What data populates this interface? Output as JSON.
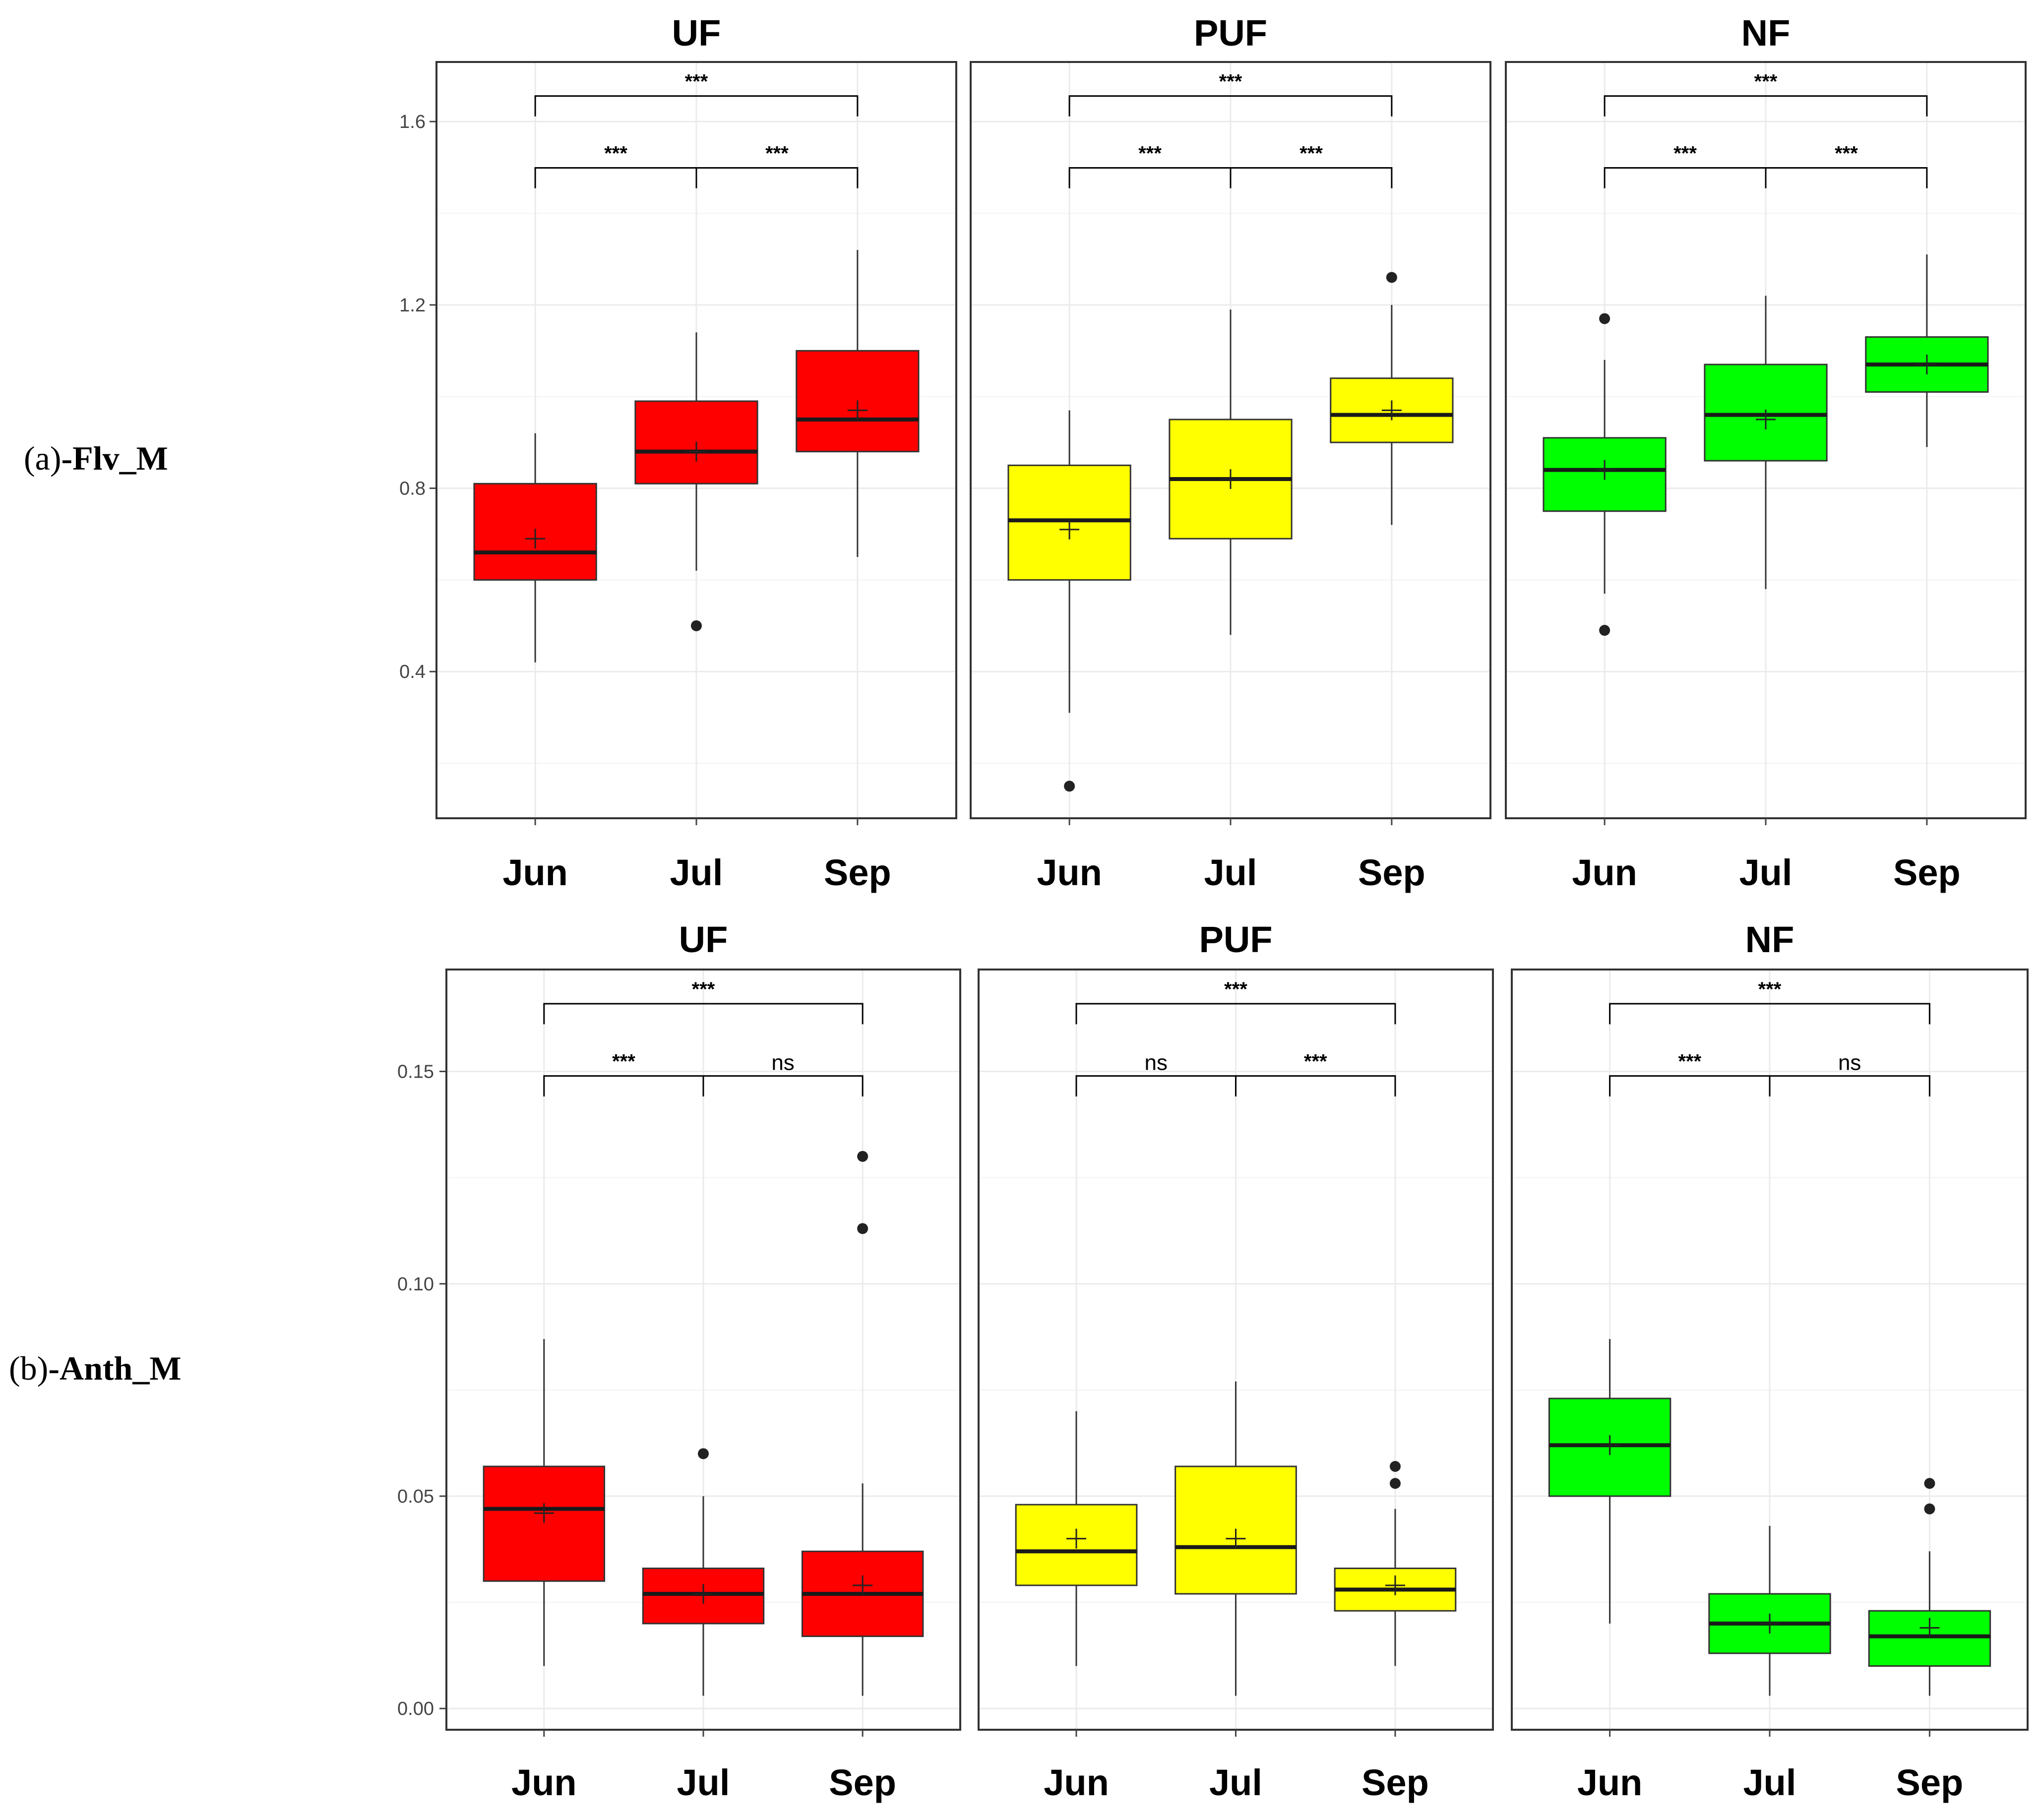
{
  "rows": [
    {
      "label_paren": "(",
      "label_letter": "a",
      "label_close": ")",
      "label_text": "-Flv_M"
    },
    {
      "label_paren": "(",
      "label_letter": "b",
      "label_close": ")",
      "label_text": "-Anth_M"
    }
  ],
  "colors": {
    "UF": "#ff0000",
    "PUF": "#ffff00",
    "NF": "#00ff00",
    "grid": "#ebebeb",
    "frame": "#333333",
    "median": "#1a1a1a"
  },
  "chart_data": [
    {
      "type": "box",
      "id": "flv",
      "ylabel_variable": "Flv_M",
      "yticks": [
        "0.4",
        "0.8",
        "1.2",
        "1.6"
      ],
      "ylim": [
        0.08,
        1.73
      ],
      "minor_grid": [
        0.2,
        0.6,
        1.0,
        1.4
      ],
      "categories": [
        "Jun",
        "Jul",
        "Sep"
      ],
      "panels": [
        {
          "title": "UF",
          "fill": "UF",
          "boxes": [
            {
              "month": "Jun",
              "q1": 0.6,
              "median": 0.66,
              "q3": 0.81,
              "lower": 0.42,
              "upper": 0.92,
              "mean": 0.69,
              "outliers": []
            },
            {
              "month": "Jul",
              "q1": 0.81,
              "median": 0.88,
              "q3": 0.99,
              "lower": 0.62,
              "upper": 1.14,
              "mean": 0.88,
              "outliers": [
                0.5
              ]
            },
            {
              "month": "Sep",
              "q1": 0.88,
              "median": 0.95,
              "q3": 1.1,
              "lower": 0.65,
              "upper": 1.32,
              "mean": 0.97,
              "outliers": []
            }
          ],
          "sig": {
            "top": "***",
            "left": "***",
            "right": "***"
          }
        },
        {
          "title": "PUF",
          "fill": "PUF",
          "boxes": [
            {
              "month": "Jun",
              "q1": 0.6,
              "median": 0.73,
              "q3": 0.85,
              "lower": 0.31,
              "upper": 0.97,
              "mean": 0.71,
              "outliers": [
                0.15
              ]
            },
            {
              "month": "Jul",
              "q1": 0.69,
              "median": 0.82,
              "q3": 0.95,
              "lower": 0.48,
              "upper": 1.19,
              "mean": 0.82,
              "outliers": []
            },
            {
              "month": "Sep",
              "q1": 0.9,
              "median": 0.96,
              "q3": 1.04,
              "lower": 0.72,
              "upper": 1.2,
              "mean": 0.97,
              "outliers": [
                1.26
              ]
            }
          ],
          "sig": {
            "top": "***",
            "left": "***",
            "right": "***"
          }
        },
        {
          "title": "NF",
          "fill": "NF",
          "boxes": [
            {
              "month": "Jun",
              "q1": 0.75,
              "median": 0.84,
              "q3": 0.91,
              "lower": 0.57,
              "upper": 1.08,
              "mean": 0.84,
              "outliers": [
                0.49,
                1.17
              ]
            },
            {
              "month": "Jul",
              "q1": 0.86,
              "median": 0.96,
              "q3": 1.07,
              "lower": 0.58,
              "upper": 1.22,
              "mean": 0.95,
              "outliers": []
            },
            {
              "month": "Sep",
              "q1": 1.01,
              "median": 1.07,
              "q3": 1.13,
              "lower": 0.89,
              "upper": 1.31,
              "mean": 1.07,
              "outliers": []
            }
          ],
          "sig": {
            "top": "***",
            "left": "***",
            "right": "***"
          }
        }
      ]
    },
    {
      "type": "box",
      "id": "anth",
      "ylabel_variable": "Anth_M",
      "yticks": [
        "0.00",
        "0.05",
        "0.10",
        "0.15"
      ],
      "ylim": [
        -0.005,
        0.174
      ],
      "minor_grid": [
        0.025,
        0.075,
        0.125
      ],
      "categories": [
        "Jun",
        "Jul",
        "Sep"
      ],
      "panels": [
        {
          "title": "UF",
          "fill": "UF",
          "boxes": [
            {
              "month": "Jun",
              "q1": 0.03,
              "median": 0.047,
              "q3": 0.057,
              "lower": 0.01,
              "upper": 0.087,
              "mean": 0.046,
              "outliers": []
            },
            {
              "month": "Jul",
              "q1": 0.02,
              "median": 0.027,
              "q3": 0.033,
              "lower": 0.003,
              "upper": 0.05,
              "mean": 0.027,
              "outliers": [
                0.06
              ]
            },
            {
              "month": "Sep",
              "q1": 0.017,
              "median": 0.027,
              "q3": 0.037,
              "lower": 0.003,
              "upper": 0.053,
              "mean": 0.029,
              "outliers": [
                0.113,
                0.13
              ]
            }
          ],
          "sig": {
            "top": "***",
            "left": "***",
            "right": "ns"
          }
        },
        {
          "title": "PUF",
          "fill": "PUF",
          "boxes": [
            {
              "month": "Jun",
              "q1": 0.029,
              "median": 0.037,
              "q3": 0.048,
              "lower": 0.01,
              "upper": 0.07,
              "mean": 0.04,
              "outliers": []
            },
            {
              "month": "Jul",
              "q1": 0.027,
              "median": 0.038,
              "q3": 0.057,
              "lower": 0.003,
              "upper": 0.077,
              "mean": 0.04,
              "outliers": []
            },
            {
              "month": "Sep",
              "q1": 0.023,
              "median": 0.028,
              "q3": 0.033,
              "lower": 0.01,
              "upper": 0.047,
              "mean": 0.029,
              "outliers": [
                0.053,
                0.057
              ]
            }
          ],
          "sig": {
            "top": "***",
            "left": "ns",
            "right": "***"
          }
        },
        {
          "title": "NF",
          "fill": "NF",
          "boxes": [
            {
              "month": "Jun",
              "q1": 0.05,
              "median": 0.062,
              "q3": 0.073,
              "lower": 0.02,
              "upper": 0.087,
              "mean": 0.062,
              "outliers": []
            },
            {
              "month": "Jul",
              "q1": 0.013,
              "median": 0.02,
              "q3": 0.027,
              "lower": 0.003,
              "upper": 0.043,
              "mean": 0.02,
              "outliers": []
            },
            {
              "month": "Sep",
              "q1": 0.01,
              "median": 0.017,
              "q3": 0.023,
              "lower": 0.003,
              "upper": 0.037,
              "mean": 0.019,
              "outliers": [
                0.047,
                0.053
              ]
            }
          ],
          "sig": {
            "top": "***",
            "left": "***",
            "right": "ns"
          }
        }
      ]
    }
  ]
}
